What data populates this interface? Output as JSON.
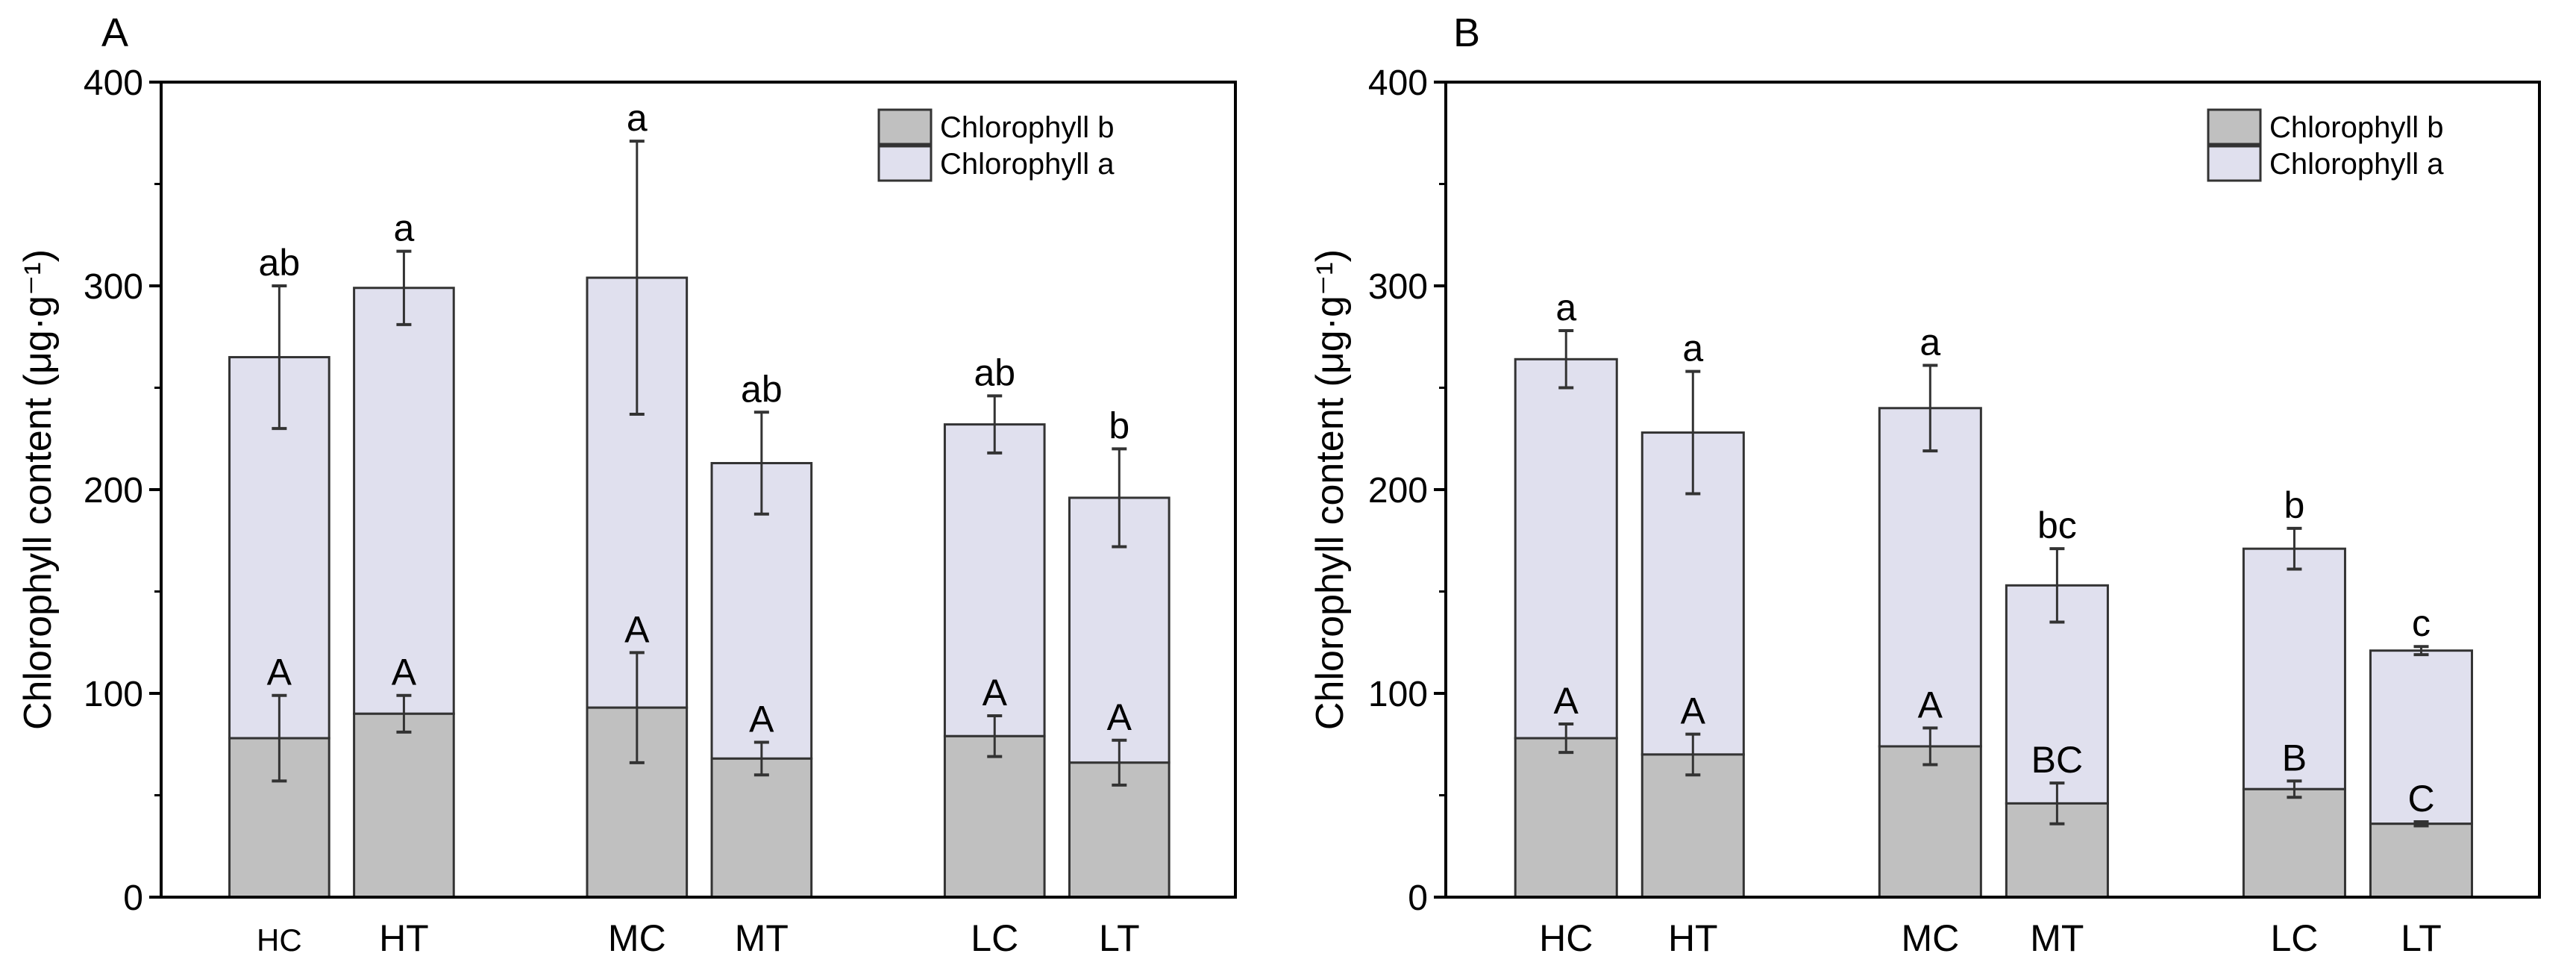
{
  "chart_data": [
    {
      "panel_label": "A",
      "type": "bar",
      "stacked": true,
      "categories": [
        "HC",
        "HT",
        "MC",
        "MT",
        "LC",
        "LT"
      ],
      "ylabel": "Chlorophyll content (μg·g⁻¹)",
      "ylim": [
        0,
        400
      ],
      "yticks": [
        "0",
        "100",
        "200",
        "300",
        "400"
      ],
      "legend_position": "top-right",
      "series": [
        {
          "name": "Chlorophyll b",
          "color": "#c0c0c0",
          "values": [
            78,
            90,
            93,
            68,
            79,
            66
          ],
          "errors": [
            21,
            9,
            27,
            8,
            10,
            11
          ],
          "letters": [
            "A",
            "A",
            "A",
            "A",
            "A",
            "A"
          ]
        },
        {
          "name": "Chlorophyll a",
          "color": "#e0e0ee",
          "values": [
            187,
            209,
            211,
            145,
            153,
            130
          ],
          "errors": [
            35,
            18,
            67,
            25,
            14,
            24
          ],
          "letters": [
            "ab",
            "a",
            "a",
            "ab",
            "ab",
            "b"
          ]
        }
      ],
      "totals": [
        265,
        299,
        304,
        213,
        232,
        196
      ]
    },
    {
      "panel_label": "B",
      "type": "bar",
      "stacked": true,
      "categories": [
        "HC",
        "HT",
        "MC",
        "MT",
        "LC",
        "LT"
      ],
      "ylabel": "Chlorophyll content (μg·g⁻¹)",
      "ylim": [
        0,
        400
      ],
      "yticks": [
        "0",
        "100",
        "200",
        "300",
        "400"
      ],
      "legend_position": "top-right",
      "series": [
        {
          "name": "Chlorophyll b",
          "color": "#c0c0c0",
          "values": [
            78,
            70,
            74,
            46,
            53,
            36
          ],
          "errors": [
            7,
            10,
            9,
            10,
            4,
            1
          ],
          "letters": [
            "A",
            "A",
            "A",
            "BC",
            "B",
            "C"
          ]
        },
        {
          "name": "Chlorophyll a",
          "color": "#e0e0ee",
          "values": [
            186,
            158,
            166,
            107,
            118,
            85
          ],
          "errors": [
            14,
            30,
            21,
            18,
            10,
            2
          ],
          "letters": [
            "a",
            "a",
            "a",
            "bc",
            "b",
            "c"
          ]
        }
      ],
      "totals": [
        264,
        228,
        240,
        153,
        171,
        121
      ]
    }
  ]
}
